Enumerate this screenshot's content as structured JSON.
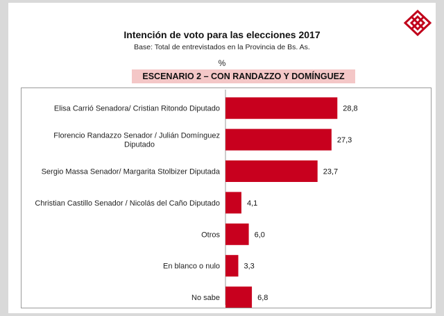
{
  "header": {
    "title": "Intención de voto para las elecciones 2017",
    "subtitle": "Base: Total de entrevistados en la Provincia de Bs. As.",
    "unit": "%",
    "scenario": "ESCENARIO 2 – CON RANDAZZO Y DOMÍNGUEZ"
  },
  "logo": {
    "icon": "diamond-logo-icon",
    "color": "#c0001a"
  },
  "chart_data": {
    "type": "bar",
    "orientation": "horizontal",
    "title": "Intención de voto para las elecciones 2017",
    "subtitle": "Base: Total de entrevistados en la Provincia de Bs. As.",
    "unit": "%",
    "categories": [
      [
        "Elisa Carrió Senadora/ Cristian Ritondo Diputado"
      ],
      [
        "Florencio Randazzo Senador / Julián Domínguez",
        "Diputado"
      ],
      [
        "Sergio Massa Senador/ Margarita Stolbizer Diputada"
      ],
      [
        "Christian Castillo Senador / Nicolás del Caño Diputado"
      ],
      [
        "Otros"
      ],
      [
        "En blanco o nulo"
      ],
      [
        "No sabe"
      ]
    ],
    "values": [
      28.8,
      27.3,
      23.7,
      4.1,
      6.0,
      3.3,
      6.8
    ],
    "value_labels": [
      "28,8",
      "27,3",
      "23,7",
      "4,1",
      "6,0",
      "3,3",
      "6,8"
    ],
    "bar_color": "#c8001e",
    "grid": false
  }
}
